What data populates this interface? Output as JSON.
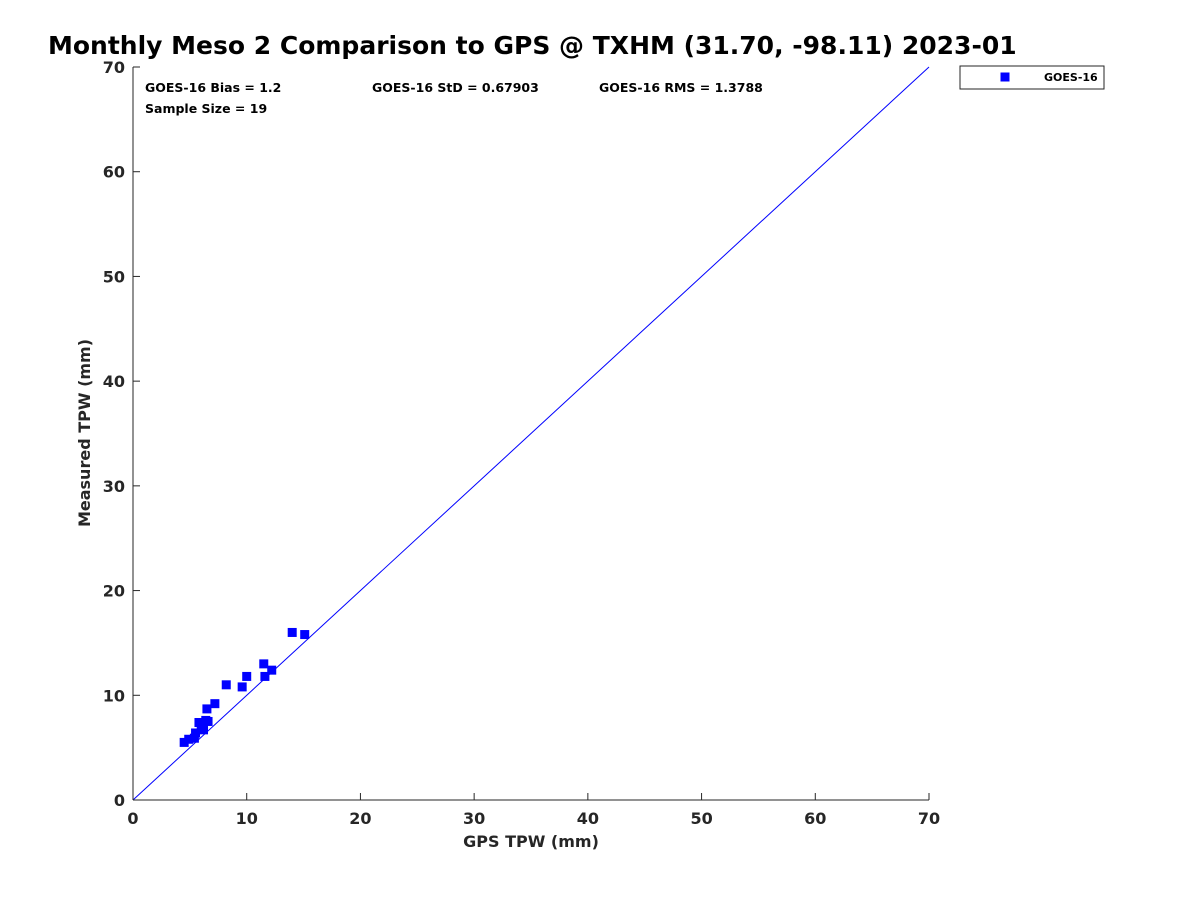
{
  "chart_data": {
    "type": "scatter",
    "title": "Monthly Meso 2 Comparison to GPS @ TXHM (31.70, -98.11) 2023-01",
    "xlabel": "GPS TPW (mm)",
    "ylabel": "Measured TPW (mm)",
    "xlim": [
      0,
      70
    ],
    "ylim": [
      0,
      70
    ],
    "xticks": [
      "0",
      "10",
      "20",
      "30",
      "40",
      "50",
      "60",
      "70"
    ],
    "yticks": [
      "0",
      "10",
      "20",
      "30",
      "40",
      "50",
      "60",
      "70"
    ],
    "grid": false,
    "legend_position": "outside-top-right",
    "reference_line": {
      "x": [
        0,
        70
      ],
      "y": [
        0,
        70
      ],
      "color": "#0000ff"
    },
    "stats": {
      "bias": "GOES-16 Bias = 1.2",
      "std": "GOES-16 StD = 0.67903",
      "rms": "GOES-16 RMS = 1.3788",
      "sample": "Sample Size = 19"
    },
    "series": [
      {
        "name": "GOES-16",
        "color": "#0000ff",
        "marker": "square",
        "x": [
          4.5,
          4.9,
          5.4,
          5.5,
          5.8,
          6.0,
          6.2,
          6.4,
          6.5,
          6.6,
          7.2,
          8.2,
          9.6,
          10.0,
          11.5,
          11.6,
          12.2,
          14.0,
          15.1
        ],
        "y": [
          5.5,
          5.8,
          5.9,
          6.4,
          7.4,
          7.2,
          6.7,
          7.6,
          8.7,
          7.5,
          9.2,
          11.0,
          10.8,
          11.8,
          13.0,
          11.8,
          12.4,
          16.0,
          15.8
        ]
      }
    ]
  }
}
